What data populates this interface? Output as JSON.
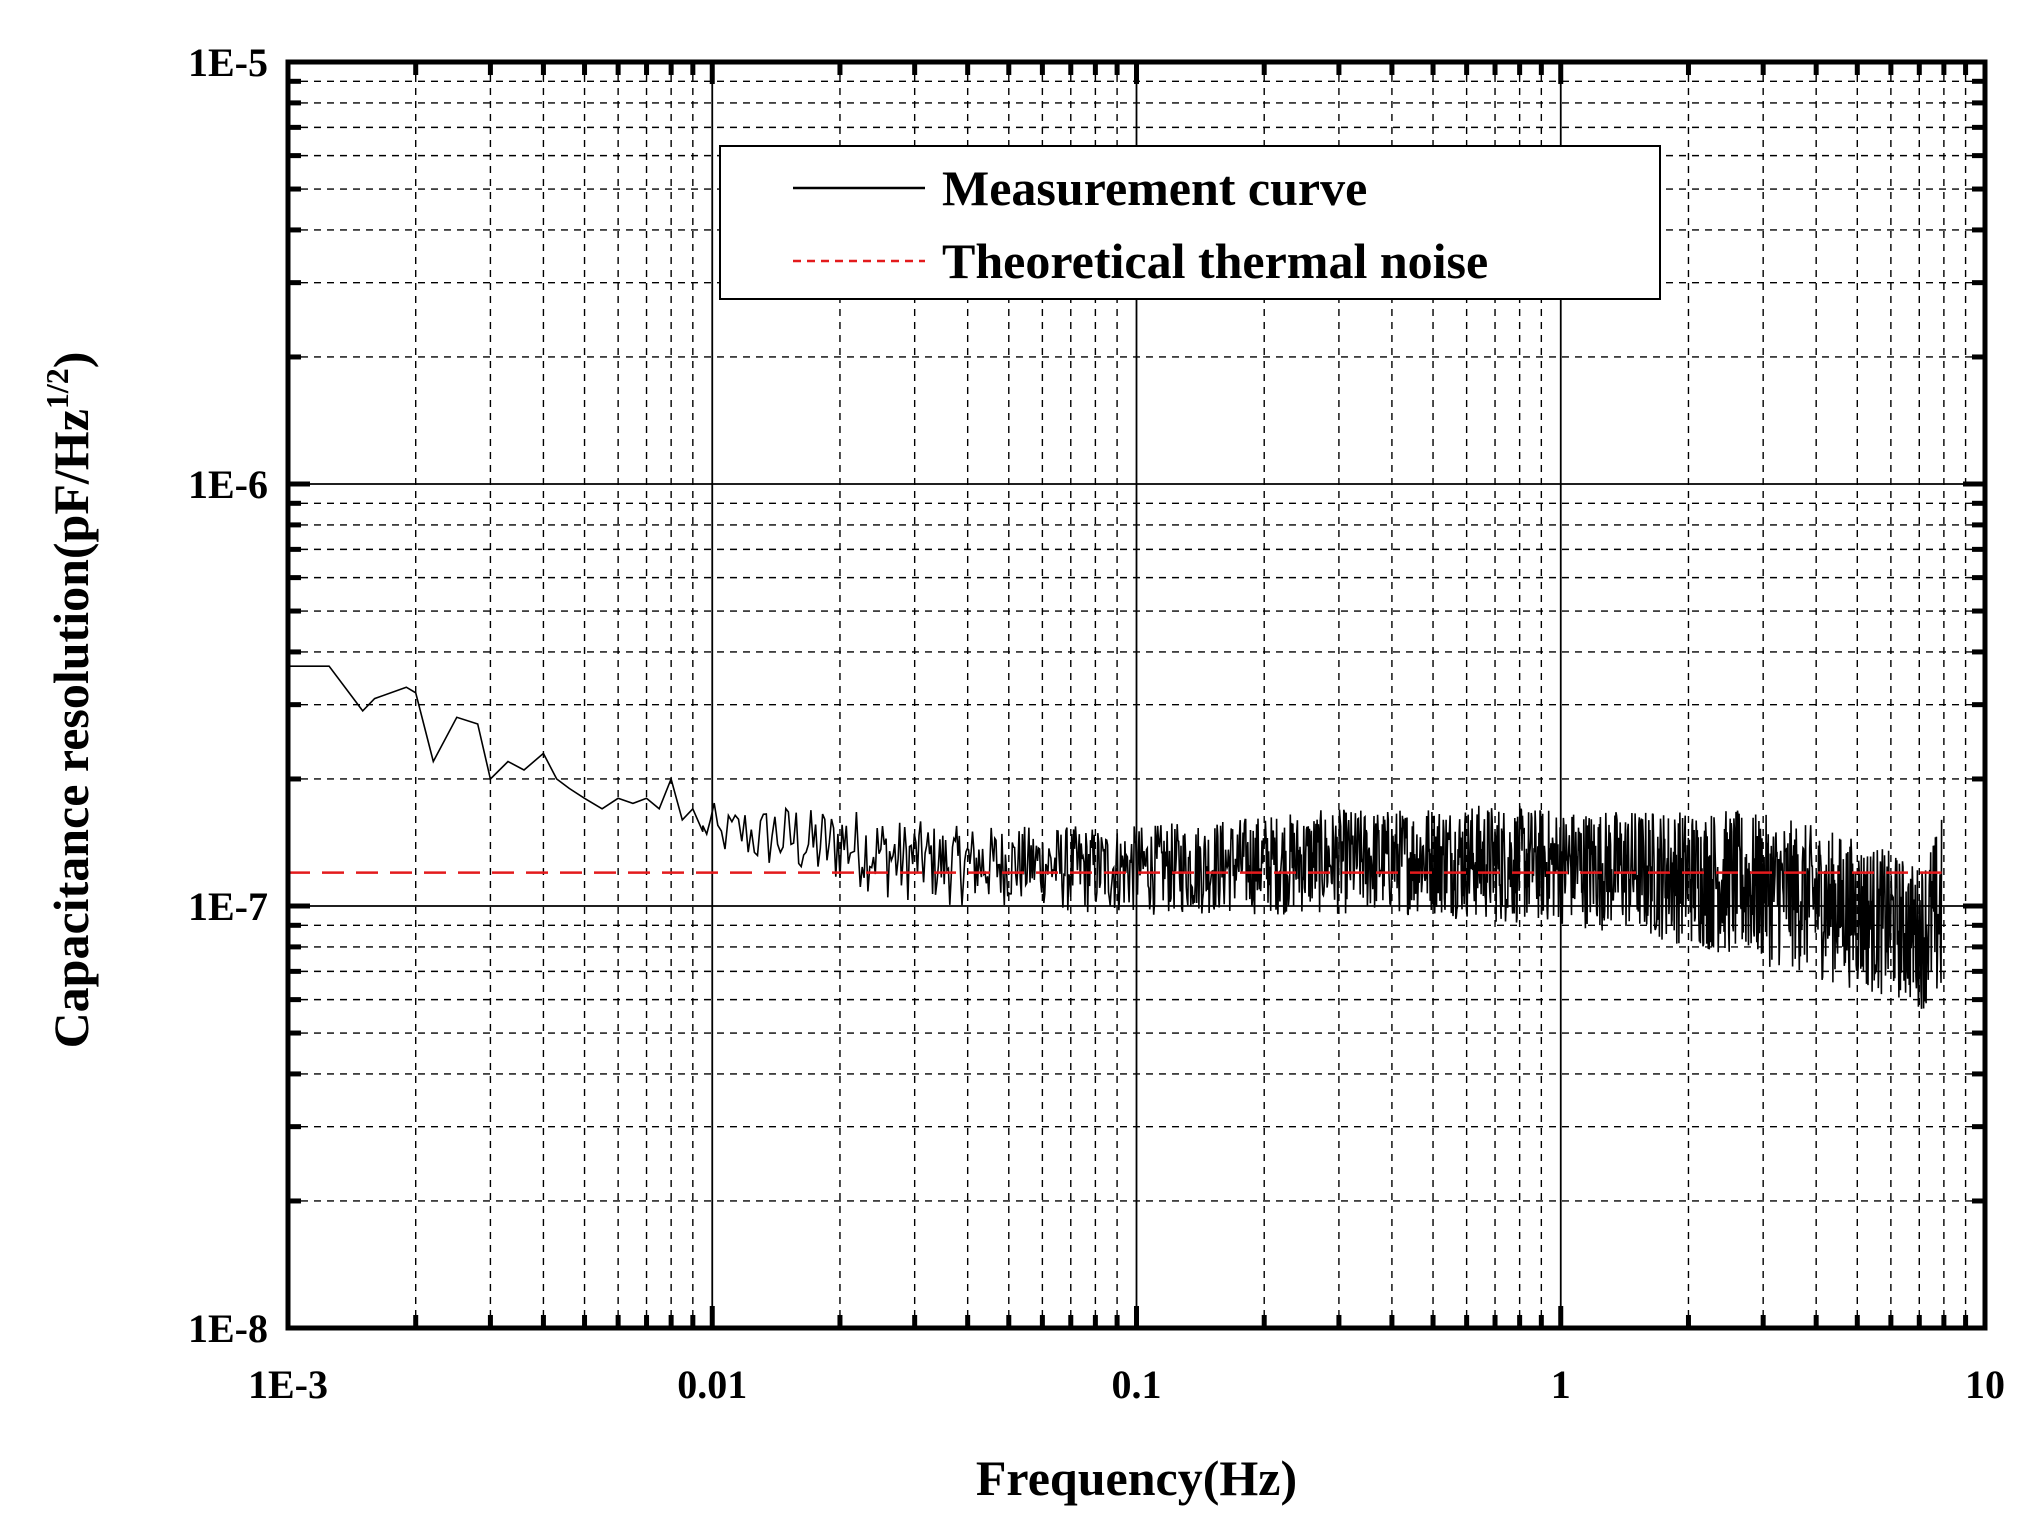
{
  "chart_data": {
    "type": "line",
    "xscale": "log",
    "yscale": "log",
    "xlabel": "Frequency(Hz)",
    "ylabel_main": "Capacitance resolution(pF/Hz",
    "ylabel_sup": "1/2",
    "ylabel_close": ")",
    "xlim": [
      0.001,
      10
    ],
    "ylim": [
      1e-08,
      1e-05
    ],
    "grid": true,
    "x_tick_values": [
      0.001,
      0.01,
      0.1,
      1,
      10
    ],
    "x_tick_labels": [
      "1E-3",
      "0.01",
      "0.1",
      "1",
      "10"
    ],
    "y_tick_values": [
      1e-08,
      1e-07,
      1e-06,
      1e-05
    ],
    "y_tick_labels": [
      "1E-8",
      "1E-7",
      "1E-6",
      "1E-5"
    ],
    "legend_position": "top-center",
    "series": [
      {
        "name": "Measurement curve",
        "color": "#000000",
        "style": "solid",
        "x": [
          0.001,
          0.00125,
          0.0015,
          0.0016,
          0.0019,
          0.002,
          0.0022,
          0.0025,
          0.0028,
          0.003,
          0.0033,
          0.0036,
          0.004,
          0.0043,
          0.0046,
          0.005,
          0.0055,
          0.006,
          0.0065,
          0.007,
          0.0075,
          0.008,
          0.0085,
          0.009,
          0.0095,
          0.01,
          0.0105,
          0.011,
          0.012,
          0.013,
          0.014,
          0.015,
          0.016,
          0.017,
          0.018,
          0.019,
          0.02,
          0.022,
          0.025,
          0.028,
          0.03,
          0.035,
          0.04,
          0.05,
          0.06,
          0.07,
          0.08,
          0.1,
          0.15,
          0.2,
          0.3,
          0.4,
          0.5,
          0.7,
          1.0,
          1.5,
          2.0,
          2.5,
          3.0,
          3.5,
          4.0,
          5.0,
          6.0,
          7.0,
          7.9
        ],
        "y": [
          3.7e-07,
          3.7e-07,
          2.9e-07,
          3.1e-07,
          3.3e-07,
          3.2e-07,
          2.2e-07,
          2.8e-07,
          2.7e-07,
          2e-07,
          2.2e-07,
          2.1e-07,
          2.3e-07,
          2e-07,
          1.9e-07,
          1.8e-07,
          1.7e-07,
          1.8e-07,
          1.75e-07,
          1.8e-07,
          1.7e-07,
          2e-07,
          1.6e-07,
          1.7e-07,
          1.5e-07,
          1.8e-07,
          1.3e-07,
          1.5e-07,
          1.6e-07,
          1.4e-07,
          1.7e-07,
          1.4e-07,
          1.6e-07,
          1.3e-07,
          1.5e-07,
          1.25e-07,
          1.5e-07,
          1.3e-07,
          1.4e-07,
          1.25e-07,
          1.35e-07,
          1.3e-07,
          1.25e-07,
          1.3e-07,
          1.25e-07,
          1.3e-07,
          1.25e-07,
          1.3e-07,
          1.3e-07,
          1.3e-07,
          1.3e-07,
          1.3e-07,
          1.3e-07,
          1.3e-07,
          1.3e-07,
          1.25e-07,
          1.25e-07,
          1.25e-07,
          1.2e-07,
          1.1e-07,
          1.05e-07,
          9.5e-08,
          8.5e-08,
          8e-08,
          7.5e-08
        ],
        "band_low": [
          3.7e-07,
          3.7e-07,
          2.9e-07,
          3.1e-07,
          3.3e-07,
          3.2e-07,
          2.2e-07,
          2.8e-07,
          2.7e-07,
          2e-07,
          2.2e-07,
          2.1e-07,
          2.3e-07,
          2e-07,
          1.9e-07,
          1.8e-07,
          1.7e-07,
          1.8e-07,
          1.75e-07,
          1.8e-07,
          1.7e-07,
          2e-07,
          1.55e-07,
          1.6e-07,
          1.45e-07,
          1.3e-07,
          1.3e-07,
          1.3e-07,
          1.25e-07,
          1.2e-07,
          1.2e-07,
          1.15e-07,
          1.15e-07,
          1.1e-07,
          1.1e-07,
          1.1e-07,
          1.1e-07,
          1.1e-07,
          1.05e-07,
          1e-07,
          1.05e-07,
          1e-07,
          1e-07,
          1e-07,
          1e-07,
          9.5e-08,
          9.5e-08,
          9.5e-08,
          9.5e-08,
          9.5e-08,
          9.5e-08,
          9.5e-08,
          9.5e-08,
          9e-08,
          9e-08,
          8.5e-08,
          8e-08,
          7.5e-08,
          7.2e-08,
          7e-08,
          6.7e-08,
          6.3e-08,
          6e-08,
          5.7e-08,
          5.6e-08
        ],
        "band_high": [
          3.7e-07,
          3.7e-07,
          2.9e-07,
          3.1e-07,
          3.3e-07,
          3.2e-07,
          2.2e-07,
          2.8e-07,
          2.7e-07,
          2e-07,
          2.2e-07,
          2.1e-07,
          2.3e-07,
          2e-07,
          1.9e-07,
          1.8e-07,
          1.7e-07,
          1.8e-07,
          1.75e-07,
          1.8e-07,
          1.7e-07,
          2e-07,
          1.7e-07,
          1.8e-07,
          1.6e-07,
          1.8e-07,
          1.6e-07,
          1.7e-07,
          1.75e-07,
          1.7e-07,
          1.8e-07,
          1.75e-07,
          1.8e-07,
          1.7e-07,
          1.75e-07,
          1.7e-07,
          1.8e-07,
          1.7e-07,
          1.65e-07,
          1.6e-07,
          1.6e-07,
          1.55e-07,
          1.55e-07,
          1.55e-07,
          1.55e-07,
          1.55e-07,
          1.55e-07,
          1.55e-07,
          1.6e-07,
          1.65e-07,
          1.7e-07,
          1.7e-07,
          1.75e-07,
          1.75e-07,
          1.7e-07,
          1.7e-07,
          1.7e-07,
          1.7e-07,
          1.65e-07,
          1.6e-07,
          1.55e-07,
          1.45e-07,
          1.35e-07,
          1.25e-07,
          1.6e-07
        ]
      },
      {
        "name": "Theoretical thermal noise",
        "color": "#e31a1c",
        "style": "dashed",
        "x": [
          0.001,
          7.9
        ],
        "y": [
          1.2e-07,
          1.2e-07
        ]
      }
    ]
  }
}
